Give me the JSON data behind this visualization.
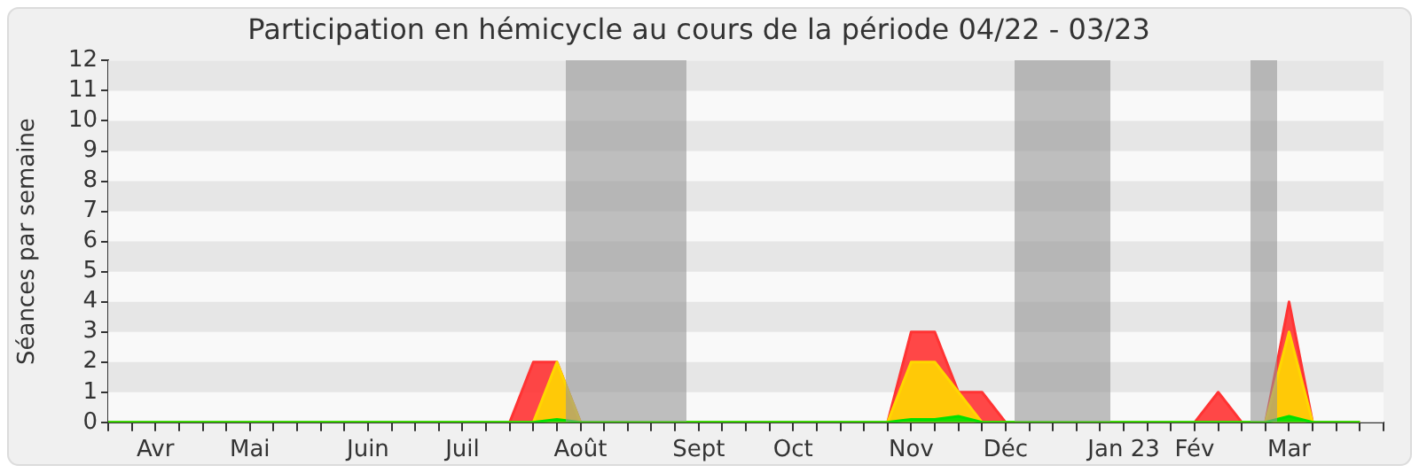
{
  "chart_data": {
    "type": "area",
    "title": "Participation en hémicycle au cours de la période 04/22 - 03/23",
    "ylabel": "Séances par semaine",
    "categories": [
      null,
      null,
      "Avr",
      null,
      null,
      null,
      "Mai",
      null,
      null,
      null,
      null,
      "Juin",
      null,
      null,
      null,
      "Juil",
      null,
      null,
      null,
      null,
      "Août",
      null,
      null,
      null,
      null,
      "Sept",
      null,
      null,
      null,
      "Oct",
      null,
      null,
      null,
      null,
      "Nov",
      null,
      null,
      null,
      "Déc",
      null,
      null,
      null,
      null,
      "Jan 23",
      null,
      null,
      "Fév",
      null,
      null,
      null,
      "Mar",
      null,
      null,
      null
    ],
    "series": [
      {
        "color": "#ff3333",
        "values": [
          0,
          0,
          0,
          0,
          0,
          0,
          0,
          0,
          0,
          0,
          0,
          0,
          0,
          0,
          0,
          0,
          0,
          0,
          2,
          2,
          0,
          0,
          0,
          0,
          0,
          0,
          0,
          0,
          0,
          0,
          0,
          0,
          0,
          0,
          3,
          3,
          1,
          1,
          0,
          0,
          0,
          0,
          0,
          0,
          0,
          0,
          0,
          1,
          0,
          0,
          4,
          0,
          0,
          0
        ]
      },
      {
        "color": "#ffd700",
        "values": [
          0,
          0,
          0,
          0,
          0,
          0,
          0,
          0,
          0,
          0,
          0,
          0,
          0,
          0,
          0,
          0,
          0,
          0,
          0,
          2,
          0,
          0,
          0,
          0,
          0,
          0,
          0,
          0,
          0,
          0,
          0,
          0,
          0,
          0,
          2,
          2,
          1,
          0,
          0,
          0,
          0,
          0,
          0,
          0,
          0,
          0,
          0,
          0,
          0,
          0,
          3,
          0,
          0,
          0
        ]
      },
      {
        "color": "#00e000",
        "values": [
          0,
          0,
          0,
          0,
          0,
          0,
          0,
          0,
          0,
          0,
          0,
          0,
          0,
          0,
          0,
          0,
          0,
          0,
          0,
          0.1,
          0,
          0,
          0,
          0,
          0,
          0,
          0,
          0,
          0,
          0,
          0,
          0,
          0,
          0,
          0.1,
          0.1,
          0.2,
          0,
          0,
          0,
          0,
          0,
          0,
          0,
          0,
          0,
          0,
          0,
          0,
          0,
          0.2,
          0,
          0,
          0
        ]
      }
    ],
    "ylim": [
      0,
      12
    ],
    "yticks": [
      0,
      1,
      2,
      3,
      4,
      5,
      6,
      7,
      8,
      9,
      10,
      11,
      12
    ],
    "marker": "none",
    "line_style": "solid"
  }
}
